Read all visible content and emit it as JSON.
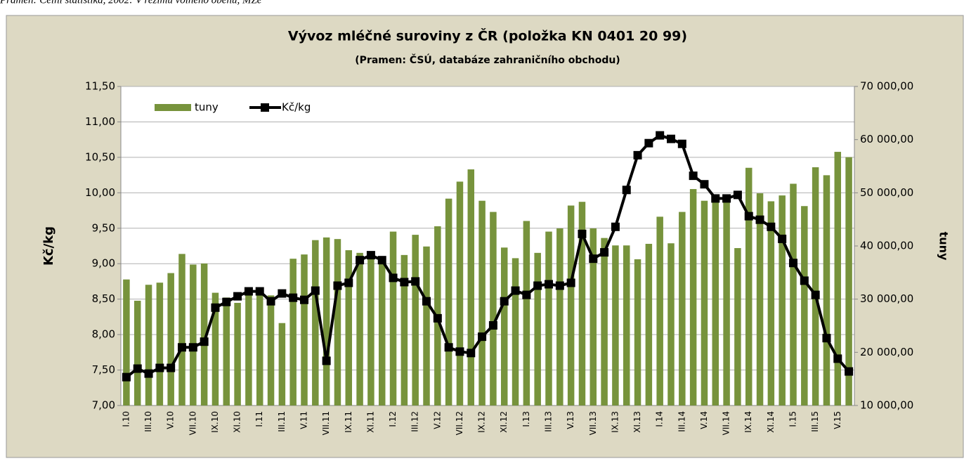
{
  "note": "Pramen: Celní statistika, 2002: V režimu volného oběhu, MZe",
  "chart_data": {
    "type": "bar-line",
    "title": "Vývoz mléčné suroviny z ČR (položka KN 0401 20 99)",
    "subtitle": "(Pramen: ČSÚ, databáze zahraničního obchodu)",
    "y_label": "Kč/kg",
    "y2_label": "tuny",
    "categories": [
      "I.10",
      null,
      "III.10",
      null,
      "V.10",
      null,
      "VII.10",
      null,
      "IX.10",
      null,
      "XI.10",
      null,
      "I.11",
      null,
      "III.11",
      null,
      "V.11",
      null,
      "VII.11",
      null,
      "IX.11",
      null,
      "XI.11",
      null,
      "I.12",
      null,
      "III.12",
      null,
      "V.12",
      null,
      "VII.12",
      null,
      "IX.12",
      null,
      "XI.12",
      null,
      "I.13",
      null,
      "III.13",
      null,
      "V.13",
      null,
      "VII.13",
      null,
      "IX.13",
      null,
      "XI.13",
      null,
      "I.14",
      null,
      "III.14",
      null,
      "V.14",
      null,
      "VII.14",
      null,
      "IX.14",
      null,
      "XI.14",
      null,
      "I.15",
      null,
      "III.15",
      null,
      "V.15",
      null
    ],
    "series": [
      {
        "name": "tuny",
        "type": "bar",
        "axis": "y2",
        "color": "#77933c",
        "values": [
          33700,
          29700,
          32700,
          33100,
          34900,
          38500,
          36500,
          36700,
          31200,
          30300,
          29300,
          30700,
          31300,
          30700,
          25500,
          37600,
          38400,
          41100,
          41600,
          41300,
          39200,
          38700,
          38000,
          37300,
          42700,
          38300,
          42100,
          39900,
          43700,
          48900,
          52100,
          54400,
          48500,
          46400,
          39700,
          37700,
          44700,
          38700,
          42700,
          43300,
          47600,
          48300,
          43300,
          41500,
          40100,
          40100,
          37500,
          40400,
          45500,
          40500,
          46400,
          50700,
          48500,
          49100,
          49300,
          39600,
          54700,
          49900,
          48400,
          49500,
          51700,
          47500,
          54800,
          53300,
          57700,
          56700
        ]
      },
      {
        "name": "Kč/kg",
        "type": "line",
        "axis": "y",
        "color": "#000000",
        "values": [
          7.4,
          7.52,
          7.45,
          7.53,
          7.53,
          7.82,
          7.82,
          7.9,
          8.38,
          8.46,
          8.54,
          8.61,
          8.61,
          8.47,
          8.58,
          8.52,
          8.49,
          8.62,
          7.63,
          8.69,
          8.73,
          9.05,
          9.12,
          9.05,
          8.8,
          8.74,
          8.75,
          8.47,
          8.23,
          7.82,
          7.76,
          7.74,
          7.97,
          8.13,
          8.47,
          8.62,
          8.56,
          8.69,
          8.71,
          8.69,
          8.73,
          9.42,
          9.07,
          9.16,
          9.52,
          10.04,
          10.53,
          10.7,
          10.81,
          10.76,
          10.69,
          10.24,
          10.12,
          9.92,
          9.92,
          9.97,
          9.67,
          9.62,
          9.52,
          9.35,
          9.01,
          8.76,
          8.56,
          7.95,
          7.66,
          7.48
        ]
      }
    ],
    "ylim": [
      7,
      11.5
    ],
    "yticks": [
      {
        "value": 7,
        "label": "7,00"
      },
      {
        "value": 7.5,
        "label": "7,50"
      },
      {
        "value": 8,
        "label": "8,00"
      },
      {
        "value": 8.5,
        "label": "8,50"
      },
      {
        "value": 9,
        "label": "9,00"
      },
      {
        "value": 9.5,
        "label": "9,50"
      },
      {
        "value": 10,
        "label": "10,00"
      },
      {
        "value": 10.5,
        "label": "10,50"
      },
      {
        "value": 11,
        "label": "11,00"
      },
      {
        "value": 11.5,
        "label": "11,50"
      }
    ],
    "y2lim": [
      10000,
      70000
    ],
    "y2ticks": [
      {
        "value": 10000,
        "label": "10 000,00"
      },
      {
        "value": 20000,
        "label": "20 000,00"
      },
      {
        "value": 30000,
        "label": "30 000,00"
      },
      {
        "value": 40000,
        "label": "40 000,00"
      },
      {
        "value": 50000,
        "label": "50 000,00"
      },
      {
        "value": 60000,
        "label": "60 000,00"
      },
      {
        "value": 70000,
        "label": "70 000,00"
      }
    ],
    "grid": true,
    "legend": "top-left"
  }
}
